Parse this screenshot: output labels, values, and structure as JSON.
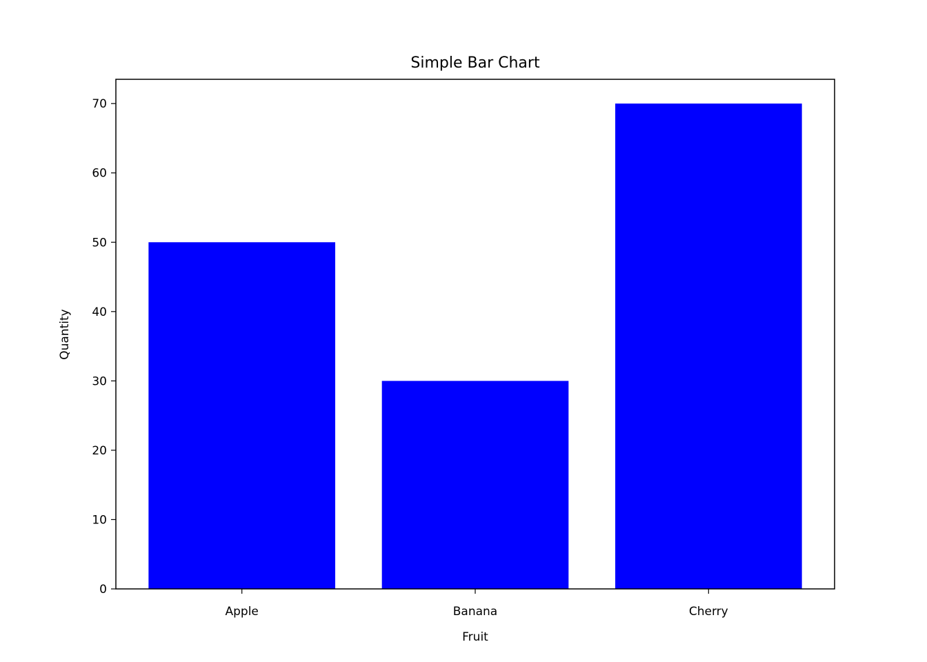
{
  "chart_data": {
    "type": "bar",
    "title": "Simple Bar Chart",
    "xlabel": "Fruit",
    "ylabel": "Quantity",
    "categories": [
      "Apple",
      "Banana",
      "Cherry"
    ],
    "values": [
      50,
      30,
      70
    ],
    "ylim": [
      0,
      73.5
    ],
    "yticks": [
      0,
      10,
      20,
      30,
      40,
      50,
      60,
      70
    ],
    "bar_color": "#0000ff",
    "grid": false
  }
}
